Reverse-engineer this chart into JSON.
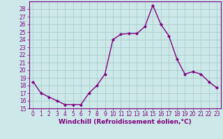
{
  "x": [
    0,
    1,
    2,
    3,
    4,
    5,
    6,
    7,
    8,
    9,
    10,
    11,
    12,
    13,
    14,
    15,
    16,
    17,
    18,
    19,
    20,
    21,
    22,
    23
  ],
  "y": [
    18.5,
    17.0,
    16.5,
    16.0,
    15.5,
    15.5,
    15.5,
    17.0,
    18.0,
    19.5,
    24.0,
    24.7,
    24.8,
    24.8,
    25.7,
    28.5,
    26.0,
    24.5,
    21.5,
    19.5,
    19.8,
    19.5,
    18.5,
    17.7
  ],
  "line_color": "#800080",
  "marker": "D",
  "marker_size": 2.0,
  "bg_color": "#cce8e8",
  "grid_color": "#aacccc",
  "xlabel": "Windchill (Refroidissement éolien,°C)",
  "xlabel_fontsize": 6.5,
  "ylim": [
    15,
    29
  ],
  "xlim": [
    -0.5,
    23.5
  ],
  "yticks": [
    15,
    16,
    17,
    18,
    19,
    20,
    21,
    22,
    23,
    24,
    25,
    26,
    27,
    28
  ],
  "xticks": [
    0,
    1,
    2,
    3,
    4,
    5,
    6,
    7,
    8,
    9,
    10,
    11,
    12,
    13,
    14,
    15,
    16,
    17,
    18,
    19,
    20,
    21,
    22,
    23
  ],
  "tick_fontsize": 5.5,
  "tick_color": "#800080",
  "spine_color": "#800080",
  "line_width": 1.0
}
